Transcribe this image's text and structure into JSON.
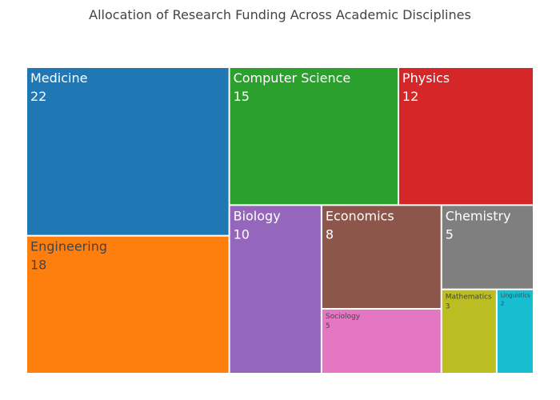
{
  "chart_data": {
    "type": "treemap",
    "title": "Allocation of Research Funding Across Academic Disciplines",
    "categories": [
      "Medicine",
      "Engineering",
      "Computer Science",
      "Physics",
      "Biology",
      "Economics",
      "Sociology",
      "Chemistry",
      "Mathematics",
      "Linguistics"
    ],
    "values": [
      22,
      18,
      15,
      12,
      10,
      8,
      5,
      5,
      3,
      2
    ],
    "colors": [
      "#1f77b4",
      "#ff7f0e",
      "#2ca02c",
      "#d62728",
      "#9467bd",
      "#8c564b",
      "#e377c2",
      "#7f7f7f",
      "#bcbd22",
      "#17becf"
    ],
    "label_colors": [
      "#ffffff",
      "#444444",
      "#ffffff",
      "#ffffff",
      "#ffffff",
      "#ffffff",
      "#444444",
      "#ffffff",
      "#444444",
      "#444444"
    ]
  }
}
